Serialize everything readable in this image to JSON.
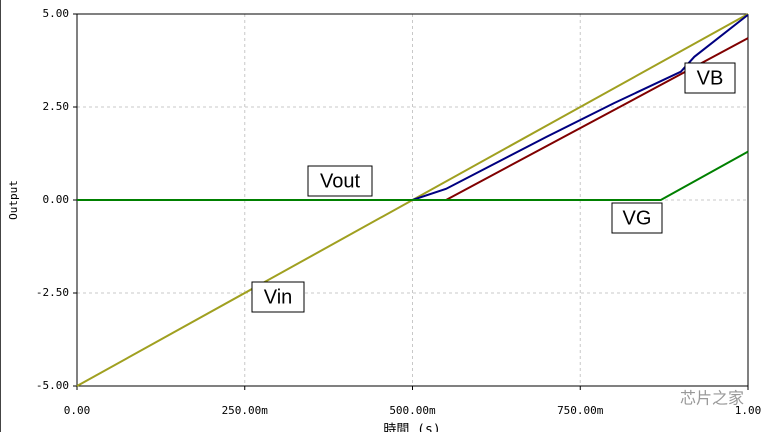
{
  "chart_data": {
    "type": "line",
    "xlabel": "時間 (s)",
    "ylabel": "Output",
    "watermark": "芯片之家",
    "xlim": [
      0,
      1
    ],
    "ylim": [
      -5,
      5
    ],
    "xticks": [
      {
        "value": 0,
        "label": "0.00"
      },
      {
        "value": 0.25,
        "label": "250.00m"
      },
      {
        "value": 0.5,
        "label": "500.00m"
      },
      {
        "value": 0.75,
        "label": "750.00m"
      },
      {
        "value": 1,
        "label": "1.00"
      }
    ],
    "yticks": [
      {
        "value": 5,
        "label": "5.00"
      },
      {
        "value": 2.5,
        "label": "2.50"
      },
      {
        "value": 0,
        "label": "0.00"
      },
      {
        "value": -2.5,
        "label": "-2.50"
      },
      {
        "value": -5,
        "label": "-5.00"
      }
    ],
    "grid": true,
    "series": [
      {
        "name": "Vin",
        "color": "#a0a020",
        "x": [
          0,
          1
        ],
        "values": [
          -5,
          5
        ]
      },
      {
        "name": "Vout",
        "color": "#000080",
        "x": [
          0,
          0.5,
          0.55,
          0.7,
          0.8,
          0.9,
          0.92,
          1.0
        ],
        "values": [
          0,
          0,
          0.3,
          1.7,
          2.6,
          3.45,
          3.85,
          4.98
        ]
      },
      {
        "name": "VB",
        "color": "#800000",
        "x": [
          0,
          0.55,
          1.0
        ],
        "values": [
          0,
          0,
          4.35
        ]
      },
      {
        "name": "VG",
        "color": "#008000",
        "x": [
          0,
          0.87,
          1.0
        ],
        "values": [
          0,
          0,
          1.3
        ]
      }
    ]
  }
}
